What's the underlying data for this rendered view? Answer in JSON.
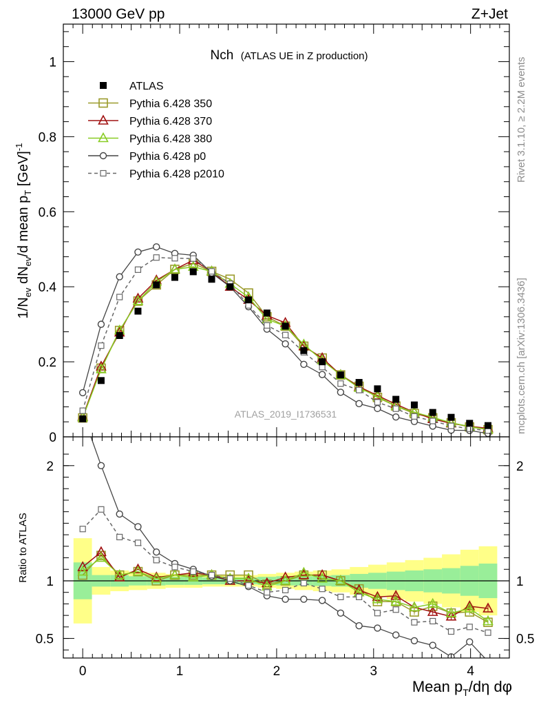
{
  "header": {
    "left": "13000 GeV pp",
    "right": "Z+Jet"
  },
  "side_labels": {
    "top": "Rivet 3.1.10, ≥ 2.2M events",
    "bottom": "mcplots.cern.ch [arXiv:1306.3436]"
  },
  "ref_name": "ATLAS_2019_I1736531",
  "chart_data": {
    "type": "line",
    "title": "Nch",
    "subtitle": "(ATLAS UE in Z production)",
    "xlabel": "Mean p_T/dη dφ",
    "ylabel": "1/N_ev dN_ev/d mean p_T [GeV]^-1",
    "ratio_ylabel": "Ratio to ATLAS",
    "xlim": [
      -0.2,
      4.4
    ],
    "ylim": [
      0,
      1.1
    ],
    "ratio_ylim": [
      0.33,
      2.25
    ],
    "x_ticks": [
      "0",
      "1",
      "2",
      "3",
      "4"
    ],
    "y_ticks": [
      "0",
      "0.2",
      "0.4",
      "0.6",
      "0.8",
      "1"
    ],
    "ratio_ticks": [
      "0.5",
      "1",
      "2"
    ],
    "x": [
      0,
      0.19,
      0.38,
      0.57,
      0.76,
      0.95,
      1.14,
      1.33,
      1.52,
      1.71,
      1.9,
      2.09,
      2.28,
      2.47,
      2.66,
      2.85,
      3.04,
      3.23,
      3.42,
      3.61,
      3.8,
      3.99,
      4.18
    ],
    "data": {
      "name": "ATLAS",
      "values": [
        0.048,
        0.15,
        0.27,
        0.335,
        0.405,
        0.425,
        0.44,
        0.42,
        0.4,
        0.365,
        0.33,
        0.295,
        0.23,
        0.2,
        0.165,
        0.145,
        0.128,
        0.1,
        0.085,
        0.065,
        0.052,
        0.036,
        0.03
      ],
      "band_inner": [
        0.16,
        0.05,
        0.05,
        0.04,
        0.04,
        0.035,
        0.035,
        0.03,
        0.03,
        0.03,
        0.035,
        0.04,
        0.04,
        0.045,
        0.05,
        0.06,
        0.07,
        0.08,
        0.09,
        0.1,
        0.11,
        0.13,
        0.15
      ],
      "band_outer": [
        0.37,
        0.12,
        0.09,
        0.08,
        0.07,
        0.06,
        0.06,
        0.05,
        0.05,
        0.05,
        0.06,
        0.07,
        0.08,
        0.09,
        0.1,
        0.12,
        0.14,
        0.16,
        0.18,
        0.2,
        0.23,
        0.27,
        0.3
      ]
    },
    "series": [
      {
        "name": "Pythia 6.428 350",
        "color": "#9a9a2a",
        "marker": "square",
        "dashed": false,
        "ratio": [
          1.05,
          1.22,
          1.05,
          1.08,
          1.0,
          1.05,
          1.05,
          1.05,
          1.05,
          1.05,
          0.97,
          1.0,
          1.05,
          1.05,
          1.0,
          0.93,
          0.82,
          0.82,
          0.73,
          0.78,
          0.72,
          0.73,
          0.64
        ]
      },
      {
        "name": "Pythia 6.428 370",
        "color": "#a01010",
        "marker": "triangle",
        "dashed": false,
        "ratio": [
          1.12,
          1.25,
          1.03,
          1.1,
          1.03,
          1.05,
          1.07,
          1.05,
          1.0,
          1.0,
          0.98,
          1.03,
          1.05,
          1.05,
          1.0,
          0.92,
          0.86,
          0.87,
          0.77,
          0.73,
          0.69,
          0.78,
          0.76
        ]
      },
      {
        "name": "Pythia 6.428 380",
        "color": "#88cc22",
        "marker": "triangle",
        "dashed": false,
        "ratio": [
          1.08,
          1.2,
          1.05,
          1.08,
          1.02,
          1.05,
          1.03,
          1.05,
          1.02,
          1.02,
          0.95,
          1.0,
          1.07,
          1.02,
          1.0,
          0.9,
          0.84,
          0.82,
          0.77,
          0.8,
          0.72,
          0.76,
          0.65
        ]
      },
      {
        "name": "Pythia 6.428 p0",
        "color": "#444444",
        "marker": "circle",
        "dashed": false,
        "ratio": [
          2.45,
          2.0,
          1.58,
          1.47,
          1.25,
          1.15,
          1.1,
          1.04,
          1.0,
          0.95,
          0.87,
          0.84,
          0.84,
          0.83,
          0.72,
          0.61,
          0.59,
          0.53,
          0.48,
          0.44,
          0.34,
          0.47,
          0.3
        ]
      },
      {
        "name": "Pythia 6.428 p2010",
        "color": "#666666",
        "marker": "square-open",
        "dashed": true,
        "ratio": [
          1.45,
          1.62,
          1.38,
          1.33,
          1.18,
          1.12,
          1.08,
          1.05,
          1.02,
          0.96,
          0.9,
          0.92,
          0.98,
          0.93,
          0.86,
          0.86,
          0.72,
          0.75,
          0.64,
          0.65,
          0.56,
          0.6,
          0.55
        ]
      }
    ]
  }
}
